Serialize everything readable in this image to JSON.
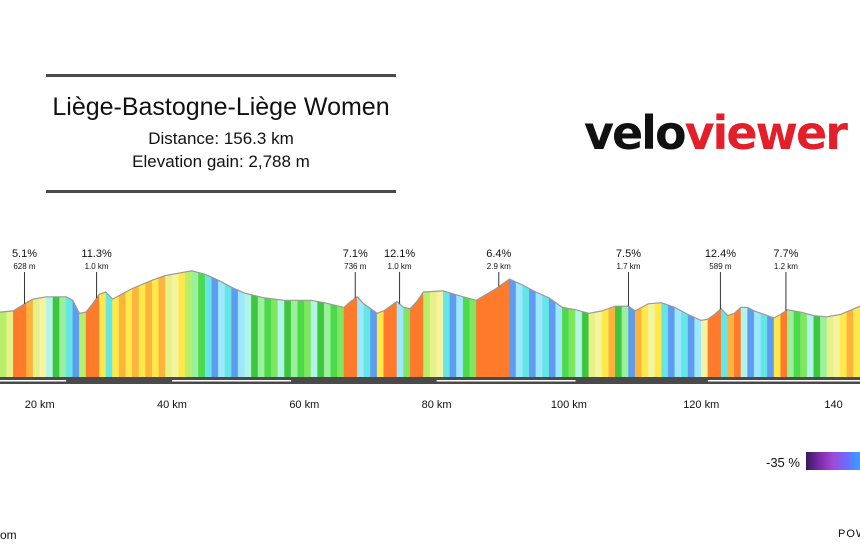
{
  "header": {
    "title": "Liège-Bastogne-Liège Women",
    "distance": "Distance: 156.3 km",
    "elevation_gain": "Elevation gain: 2,788 m"
  },
  "logo": {
    "part1": "velo",
    "part2": "viewer"
  },
  "legend": {
    "label": "-35 %"
  },
  "footer": {
    "left": "om",
    "right": "POW"
  },
  "colors": {
    "profile_outline": "#9a9a9a",
    "road_bar": "#4a4a4a",
    "logo_accent": "#e3202a"
  },
  "chart_data": {
    "type": "area",
    "title": "Liège-Bastogne-Liège Women",
    "xlabel": "",
    "ylabel": "",
    "x_ticks": [
      20,
      40,
      60,
      80,
      100,
      120,
      140
    ],
    "x_tick_labels": [
      "20 km",
      "40 km",
      "60 km",
      "80 km",
      "100 km",
      "120 km",
      "140"
    ],
    "xlim": [
      14,
      144
    ],
    "profile": [
      [
        14,
        95
      ],
      [
        16,
        96
      ],
      [
        18,
        103
      ],
      [
        19,
        106
      ],
      [
        21,
        108
      ],
      [
        24,
        108
      ],
      [
        25,
        105
      ],
      [
        26,
        94
      ],
      [
        27,
        95
      ],
      [
        28,
        102
      ],
      [
        29,
        110
      ],
      [
        30,
        112
      ],
      [
        31,
        106
      ],
      [
        34,
        115
      ],
      [
        37,
        122
      ],
      [
        39,
        126
      ],
      [
        41,
        128
      ],
      [
        43,
        130
      ],
      [
        45,
        127
      ],
      [
        47,
        122
      ],
      [
        49,
        116
      ],
      [
        51,
        111
      ],
      [
        54,
        107
      ],
      [
        57,
        105
      ],
      [
        61,
        105
      ],
      [
        63,
        103
      ],
      [
        66,
        99
      ],
      [
        67,
        104
      ],
      [
        68,
        108
      ],
      [
        69,
        102
      ],
      [
        71,
        94
      ],
      [
        72,
        96
      ],
      [
        73,
        100
      ],
      [
        74,
        104
      ],
      [
        75,
        99
      ],
      [
        76,
        98
      ],
      [
        77,
        104
      ],
      [
        78,
        112
      ],
      [
        81,
        113
      ],
      [
        84,
        108
      ],
      [
        86,
        105
      ],
      [
        89,
        115
      ],
      [
        91,
        123
      ],
      [
        93,
        118
      ],
      [
        95,
        112
      ],
      [
        97,
        107
      ],
      [
        99,
        99
      ],
      [
        101,
        97
      ],
      [
        103,
        94
      ],
      [
        105,
        96
      ],
      [
        107,
        100
      ],
      [
        109,
        100
      ],
      [
        110,
        96
      ],
      [
        111,
        99
      ],
      [
        112,
        102
      ],
      [
        114,
        103
      ],
      [
        116,
        99
      ],
      [
        118,
        93
      ],
      [
        120,
        88
      ],
      [
        121,
        89
      ],
      [
        122,
        93
      ],
      [
        123,
        98
      ],
      [
        124,
        92
      ],
      [
        125,
        94
      ],
      [
        126,
        99
      ],
      [
        127,
        99
      ],
      [
        128,
        96
      ],
      [
        130,
        92
      ],
      [
        131,
        90
      ],
      [
        132,
        93
      ],
      [
        133,
        97
      ],
      [
        135,
        95
      ],
      [
        137,
        92
      ],
      [
        139,
        91
      ],
      [
        141,
        93
      ],
      [
        144,
        100
      ]
    ],
    "climbs": [
      {
        "km": 17.7,
        "grade": "5.1%",
        "length": "628 m"
      },
      {
        "km": 28.6,
        "grade": "11.3%",
        "length": "1.0 km"
      },
      {
        "km": 67.7,
        "grade": "7.1%",
        "length": "736 m"
      },
      {
        "km": 74.4,
        "grade": "12.1%",
        "length": "1.0 km"
      },
      {
        "km": 89.4,
        "grade": "6.4%",
        "length": "2.9 km"
      },
      {
        "km": 109.0,
        "grade": "7.5%",
        "length": "1.7 km"
      },
      {
        "km": 122.9,
        "grade": "12.4%",
        "length": "589 m"
      },
      {
        "km": 132.8,
        "grade": "7.7%",
        "length": "1.2 km"
      }
    ],
    "grid": false,
    "legend_position": "bottom-right"
  }
}
